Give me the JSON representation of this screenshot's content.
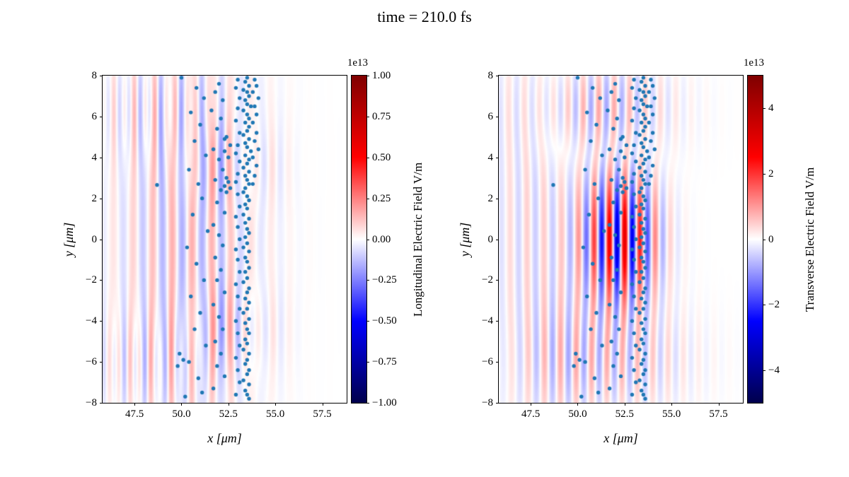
{
  "figure": {
    "background": "#ffffff",
    "axis_color": "#000000",
    "colormap": [
      "#00004c",
      "#0000ff",
      "#ffffff",
      "#ff0000",
      "#7f0000"
    ]
  },
  "chart_data": {
    "type": "heatmap+scatter",
    "title": "time = 210.0 fs",
    "panels": [
      {
        "id": "longitudinal",
        "xlabel": "x [μm]",
        "ylabel": "y [μm]",
        "xlim": [
          45.8,
          58.8
        ],
        "ylim": [
          -8,
          8
        ],
        "xticks": {
          "values": [
            47.5,
            50.0,
            52.5,
            55.0,
            57.5
          ],
          "labels": [
            "47.5",
            "50.0",
            "52.5",
            "55.0",
            "57.5"
          ]
        },
        "yticks": {
          "values": [
            8,
            6,
            4,
            2,
            0,
            -2,
            -4,
            -6,
            -8
          ],
          "labels": [
            "8",
            "6",
            "4",
            "2",
            "0",
            "−2",
            "−4",
            "−6",
            "−8"
          ]
        },
        "colorbar": {
          "label": "Longitudinal Electric Field V/m",
          "offset_text": "1e13",
          "vmin": -1.0,
          "vmax": 1.0,
          "ticks": {
            "values": [
              1.0,
              0.75,
              0.5,
              0.25,
              0.0,
              -0.25,
              -0.5,
              -0.75,
              -1.0
            ],
            "labels": [
              "1.00",
              "0.75",
              "0.50",
              "0.25",
              "0.00",
              "−0.25",
              "−0.50",
              "−0.75",
              "−1.00"
            ]
          }
        },
        "field_waves": [
          {
            "amp": 0.16,
            "wavelength": 1.05,
            "cx": 50.3,
            "sx": 2.6,
            "cy": 0.0,
            "sy": 7.5,
            "phase": 0.0
          },
          {
            "amp": 0.1,
            "wavelength": 0.55,
            "cx": 48.5,
            "sx": 2.2,
            "cy": 6.2,
            "sy": 1.8,
            "phase": 0.4
          },
          {
            "amp": 0.1,
            "wavelength": 0.55,
            "cx": 48.3,
            "sx": 2.2,
            "cy": -6.0,
            "sy": 1.8,
            "phase": 1.1
          },
          {
            "amp": 0.12,
            "wavelength": 0.8,
            "cx": 52.6,
            "sx": 1.6,
            "cy": -4.4,
            "sy": 1.6,
            "phase": 2.0
          },
          {
            "amp": 0.1,
            "wavelength": 0.8,
            "cx": 52.4,
            "sx": 1.8,
            "cy": 3.6,
            "sy": 1.5,
            "phase": 0.9
          }
        ]
      },
      {
        "id": "transverse",
        "xlabel": "x [μm]",
        "ylabel": "y [μm]",
        "xlim": [
          45.8,
          58.8
        ],
        "ylim": [
          -8,
          8
        ],
        "xticks": {
          "values": [
            47.5,
            50.0,
            52.5,
            55.0,
            57.5
          ],
          "labels": [
            "47.5",
            "50.0",
            "52.5",
            "55.0",
            "57.5"
          ]
        },
        "yticks": {
          "values": [
            8,
            6,
            4,
            2,
            0,
            -2,
            -4,
            -6,
            -8
          ],
          "labels": [
            "8",
            "6",
            "4",
            "2",
            "0",
            "−2",
            "−4",
            "−6",
            "−8"
          ]
        },
        "colorbar": {
          "label": "Transverse Electric Field V/m",
          "offset_text": "1e13",
          "vmin": -5.0,
          "vmax": 5.0,
          "ticks": {
            "values": [
              4,
              2,
              0,
              -2,
              -4
            ],
            "labels": [
              "4",
              "2",
              "0",
              "−2",
              "−4"
            ]
          }
        },
        "field_waves": [
          {
            "amp": 0.6,
            "wavelength": 0.82,
            "cx": 52.3,
            "sx": 1.35,
            "cy": 0.0,
            "sy": 2.3,
            "phase": 0.0
          },
          {
            "amp": 0.18,
            "wavelength": 0.82,
            "cx": 51.0,
            "sx": 2.6,
            "cy": 6.3,
            "sy": 1.7,
            "phase": 0.5
          },
          {
            "amp": 0.16,
            "wavelength": 0.82,
            "cx": 51.5,
            "sx": 2.8,
            "cy": -5.8,
            "sy": 1.9,
            "phase": 1.3
          },
          {
            "amp": 0.1,
            "wavelength": 0.9,
            "cx": 48.0,
            "sx": 2.0,
            "cy": 0.0,
            "sy": 7.0,
            "phase": 0.2
          }
        ]
      }
    ],
    "scatter": {
      "color": "#1f77b4",
      "marker_radius": 2.7,
      "points": [
        [
          53.5,
          7.9
        ],
        [
          53.4,
          7.7
        ],
        [
          53.6,
          7.5
        ],
        [
          53.3,
          7.3
        ],
        [
          53.5,
          7.2
        ],
        [
          53.6,
          7.0
        ],
        [
          53.4,
          6.8
        ],
        [
          53.5,
          6.6
        ],
        [
          53.7,
          6.5
        ],
        [
          53.3,
          6.3
        ],
        [
          53.5,
          6.1
        ],
        [
          53.6,
          5.9
        ],
        [
          53.4,
          5.7
        ],
        [
          53.6,
          5.5
        ],
        [
          53.5,
          5.3
        ],
        [
          53.3,
          5.1
        ],
        [
          53.6,
          4.9
        ],
        [
          53.4,
          4.7
        ],
        [
          53.5,
          4.5
        ],
        [
          53.7,
          4.3
        ],
        [
          53.4,
          4.1
        ],
        [
          53.6,
          3.9
        ],
        [
          53.5,
          3.7
        ],
        [
          53.3,
          3.5
        ],
        [
          53.6,
          3.3
        ],
        [
          53.4,
          3.1
        ],
        [
          53.5,
          2.9
        ],
        [
          53.6,
          2.7
        ],
        [
          53.4,
          2.5
        ],
        [
          53.3,
          2.3
        ],
        [
          53.5,
          2.1
        ],
        [
          53.6,
          1.9
        ],
        [
          53.4,
          1.7
        ],
        [
          53.5,
          1.5
        ],
        [
          53.3,
          1.2
        ],
        [
          53.6,
          1.0
        ],
        [
          53.4,
          0.8
        ],
        [
          53.5,
          0.5
        ],
        [
          53.6,
          0.3
        ],
        [
          53.4,
          0.1
        ],
        [
          53.5,
          -0.2
        ],
        [
          53.3,
          -0.4
        ],
        [
          53.6,
          -0.6
        ],
        [
          53.4,
          -0.9
        ],
        [
          53.5,
          -1.1
        ],
        [
          53.6,
          -1.4
        ],
        [
          53.4,
          -1.6
        ],
        [
          53.5,
          -1.9
        ],
        [
          53.3,
          -2.1
        ],
        [
          53.6,
          -2.4
        ],
        [
          53.5,
          -2.6
        ],
        [
          53.4,
          -2.9
        ],
        [
          53.6,
          -3.1
        ],
        [
          53.5,
          -3.4
        ],
        [
          53.3,
          -3.6
        ],
        [
          53.6,
          -3.9
        ],
        [
          53.4,
          -4.1
        ],
        [
          53.5,
          -4.4
        ],
        [
          53.6,
          -4.6
        ],
        [
          53.4,
          -4.9
        ],
        [
          53.5,
          -5.1
        ],
        [
          53.3,
          -5.4
        ],
        [
          53.6,
          -5.6
        ],
        [
          53.5,
          -5.9
        ],
        [
          53.4,
          -6.1
        ],
        [
          53.6,
          -6.4
        ],
        [
          53.5,
          -6.6
        ],
        [
          53.3,
          -6.9
        ],
        [
          53.6,
          -7.1
        ],
        [
          53.4,
          -7.4
        ],
        [
          53.5,
          -7.6
        ],
        [
          53.6,
          -7.8
        ],
        [
          53.9,
          7.8
        ],
        [
          54.0,
          7.5
        ],
        [
          53.8,
          7.2
        ],
        [
          54.1,
          6.9
        ],
        [
          53.9,
          6.5
        ],
        [
          54.0,
          6.1
        ],
        [
          53.8,
          5.7
        ],
        [
          54.0,
          5.2
        ],
        [
          53.9,
          4.8
        ],
        [
          54.1,
          4.4
        ],
        [
          53.8,
          4.0
        ],
        [
          54.0,
          3.6
        ],
        [
          53.9,
          3.1
        ],
        [
          53.8,
          2.7
        ],
        [
          53.0,
          7.8
        ],
        [
          52.9,
          7.4
        ],
        [
          53.1,
          6.9
        ],
        [
          53.0,
          6.4
        ],
        [
          52.9,
          5.8
        ],
        [
          53.1,
          5.2
        ],
        [
          53.0,
          4.6
        ],
        [
          52.9,
          4.2
        ],
        [
          53.1,
          3.8
        ],
        [
          53.0,
          3.2
        ],
        [
          52.9,
          2.8
        ],
        [
          53.0,
          2.2
        ],
        [
          53.1,
          1.6
        ],
        [
          52.9,
          1.1
        ],
        [
          53.0,
          0.6
        ],
        [
          53.1,
          0.0
        ],
        [
          52.9,
          -0.5
        ],
        [
          53.0,
          -1.0
        ],
        [
          53.1,
          -1.6
        ],
        [
          52.9,
          -2.2
        ],
        [
          53.0,
          -2.8
        ],
        [
          53.1,
          -3.4
        ],
        [
          52.9,
          -4.0
        ],
        [
          53.0,
          -4.6
        ],
        [
          53.1,
          -5.2
        ],
        [
          52.9,
          -5.8
        ],
        [
          53.0,
          -6.4
        ],
        [
          53.1,
          -7.0
        ],
        [
          52.9,
          -7.6
        ],
        [
          52.4,
          3.0
        ],
        [
          52.5,
          2.8
        ],
        [
          52.3,
          2.6
        ],
        [
          52.6,
          2.5
        ],
        [
          52.4,
          2.3
        ],
        [
          52.5,
          4.0
        ],
        [
          52.3,
          4.3
        ],
        [
          52.6,
          4.6
        ],
        [
          52.4,
          5.0
        ],
        [
          52.0,
          7.6
        ],
        [
          51.8,
          7.2
        ],
        [
          52.2,
          6.8
        ],
        [
          51.6,
          6.3
        ],
        [
          52.1,
          5.9
        ],
        [
          51.9,
          5.4
        ],
        [
          52.3,
          4.9
        ],
        [
          51.7,
          4.4
        ],
        [
          52.0,
          3.9
        ],
        [
          52.2,
          3.4
        ],
        [
          51.8,
          2.9
        ],
        [
          52.1,
          2.4
        ],
        [
          51.9,
          1.8
        ],
        [
          52.3,
          1.3
        ],
        [
          51.7,
          0.7
        ],
        [
          52.0,
          0.2
        ],
        [
          52.2,
          -0.3
        ],
        [
          51.8,
          -0.9
        ],
        [
          52.1,
          -1.5
        ],
        [
          51.9,
          -2.0
        ],
        [
          52.3,
          -2.6
        ],
        [
          51.7,
          -3.2
        ],
        [
          52.0,
          -3.8
        ],
        [
          52.2,
          -4.4
        ],
        [
          51.8,
          -5.0
        ],
        [
          52.1,
          -5.6
        ],
        [
          51.9,
          -6.2
        ],
        [
          52.3,
          -6.7
        ],
        [
          51.7,
          -7.3
        ],
        [
          50.8,
          7.4
        ],
        [
          51.2,
          6.9
        ],
        [
          50.5,
          6.2
        ],
        [
          51.0,
          5.6
        ],
        [
          50.7,
          4.8
        ],
        [
          51.3,
          4.1
        ],
        [
          50.4,
          3.4
        ],
        [
          50.9,
          2.7
        ],
        [
          51.1,
          2.0
        ],
        [
          50.6,
          1.2
        ],
        [
          51.4,
          0.4
        ],
        [
          50.3,
          -0.4
        ],
        [
          50.8,
          -1.2
        ],
        [
          51.2,
          -2.0
        ],
        [
          50.5,
          -2.8
        ],
        [
          51.0,
          -3.6
        ],
        [
          50.7,
          -4.4
        ],
        [
          51.3,
          -5.2
        ],
        [
          50.4,
          -6.0
        ],
        [
          50.9,
          -6.8
        ],
        [
          51.1,
          -7.5
        ],
        [
          48.7,
          2.65
        ],
        [
          49.9,
          -5.6
        ],
        [
          50.1,
          -5.9
        ],
        [
          49.8,
          -6.2
        ],
        [
          50.0,
          7.9
        ],
        [
          50.2,
          -7.7
        ]
      ]
    }
  }
}
